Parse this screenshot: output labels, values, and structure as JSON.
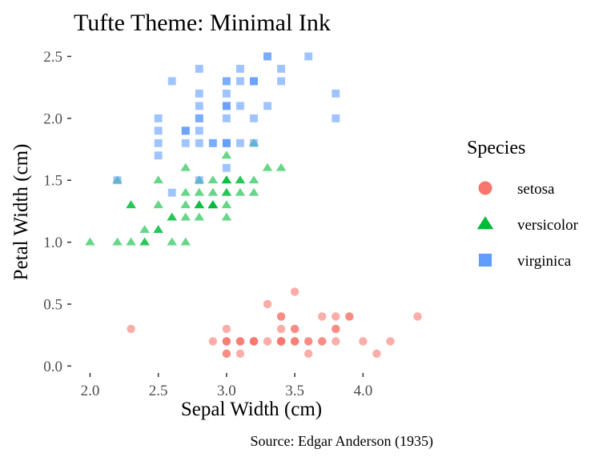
{
  "chart_data": {
    "type": "scatter",
    "title": "Tufte Theme: Minimal Ink",
    "xlabel": "Sepal Width (cm)",
    "ylabel": "Petal Width (cm)",
    "caption": "Source: Edgar Anderson (1935)",
    "xlim": [
      1.88,
      4.52
    ],
    "ylim": [
      -0.03,
      2.6
    ],
    "x_ticks": [
      {
        "value": 2.0,
        "label": "2.0"
      },
      {
        "value": 2.5,
        "label": "2.5"
      },
      {
        "value": 3.0,
        "label": "3.0"
      },
      {
        "value": 3.5,
        "label": "3.5"
      },
      {
        "value": 4.0,
        "label": "4.0"
      }
    ],
    "y_ticks": [
      {
        "value": 0.0,
        "label": "0.0"
      },
      {
        "value": 0.5,
        "label": "0.5"
      },
      {
        "value": 1.0,
        "label": "1.0"
      },
      {
        "value": 1.5,
        "label": "1.5"
      },
      {
        "value": 2.0,
        "label": "2.0"
      },
      {
        "value": 2.5,
        "label": "2.5"
      }
    ],
    "grid": false,
    "legend": {
      "title": "Species",
      "placement": "right"
    },
    "series": [
      {
        "name": "setosa",
        "shape": "circle",
        "color": "#F8766D",
        "points": [
          [
            3.5,
            0.2
          ],
          [
            3.0,
            0.2
          ],
          [
            3.2,
            0.2
          ],
          [
            3.1,
            0.2
          ],
          [
            3.6,
            0.2
          ],
          [
            3.9,
            0.4
          ],
          [
            3.4,
            0.3
          ],
          [
            3.4,
            0.2
          ],
          [
            2.9,
            0.2
          ],
          [
            3.1,
            0.1
          ],
          [
            3.7,
            0.2
          ],
          [
            3.4,
            0.2
          ],
          [
            3.0,
            0.1
          ],
          [
            3.0,
            0.1
          ],
          [
            4.0,
            0.2
          ],
          [
            4.4,
            0.4
          ],
          [
            3.9,
            0.4
          ],
          [
            3.5,
            0.3
          ],
          [
            3.8,
            0.3
          ],
          [
            3.8,
            0.3
          ],
          [
            3.4,
            0.2
          ],
          [
            3.7,
            0.4
          ],
          [
            3.6,
            0.2
          ],
          [
            3.3,
            0.5
          ],
          [
            3.4,
            0.2
          ],
          [
            3.0,
            0.2
          ],
          [
            3.4,
            0.4
          ],
          [
            3.5,
            0.2
          ],
          [
            3.4,
            0.2
          ],
          [
            3.2,
            0.2
          ],
          [
            3.1,
            0.2
          ],
          [
            3.4,
            0.4
          ],
          [
            4.1,
            0.1
          ],
          [
            4.2,
            0.2
          ],
          [
            3.1,
            0.2
          ],
          [
            3.2,
            0.2
          ],
          [
            3.5,
            0.2
          ],
          [
            3.6,
            0.1
          ],
          [
            3.0,
            0.2
          ],
          [
            3.4,
            0.2
          ],
          [
            3.5,
            0.3
          ],
          [
            2.3,
            0.3
          ],
          [
            3.2,
            0.2
          ],
          [
            3.5,
            0.6
          ],
          [
            3.8,
            0.4
          ],
          [
            3.0,
            0.3
          ],
          [
            3.8,
            0.2
          ],
          [
            3.2,
            0.2
          ],
          [
            3.7,
            0.2
          ],
          [
            3.3,
            0.2
          ]
        ]
      },
      {
        "name": "versicolor",
        "shape": "triangle",
        "color": "#00BA38",
        "points": [
          [
            3.2,
            1.4
          ],
          [
            3.2,
            1.5
          ],
          [
            3.1,
            1.5
          ],
          [
            2.3,
            1.3
          ],
          [
            2.8,
            1.5
          ],
          [
            2.8,
            1.3
          ],
          [
            3.3,
            1.6
          ],
          [
            2.4,
            1.0
          ],
          [
            2.9,
            1.3
          ],
          [
            2.7,
            1.4
          ],
          [
            2.0,
            1.0
          ],
          [
            3.0,
            1.5
          ],
          [
            2.2,
            1.0
          ],
          [
            2.9,
            1.4
          ],
          [
            2.9,
            1.3
          ],
          [
            3.1,
            1.4
          ],
          [
            3.0,
            1.5
          ],
          [
            2.7,
            1.0
          ],
          [
            2.2,
            1.5
          ],
          [
            2.5,
            1.1
          ],
          [
            3.2,
            1.8
          ],
          [
            2.8,
            1.3
          ],
          [
            2.5,
            1.5
          ],
          [
            2.8,
            1.2
          ],
          [
            2.9,
            1.3
          ],
          [
            3.0,
            1.4
          ],
          [
            2.8,
            1.4
          ],
          [
            3.0,
            1.7
          ],
          [
            2.9,
            1.5
          ],
          [
            2.6,
            1.0
          ],
          [
            2.4,
            1.1
          ],
          [
            2.4,
            1.0
          ],
          [
            2.7,
            1.2
          ],
          [
            2.7,
            1.6
          ],
          [
            3.0,
            1.5
          ],
          [
            3.4,
            1.6
          ],
          [
            3.1,
            1.5
          ],
          [
            2.3,
            1.3
          ],
          [
            3.0,
            1.3
          ],
          [
            2.5,
            1.3
          ],
          [
            2.6,
            1.2
          ],
          [
            3.0,
            1.4
          ],
          [
            2.6,
            1.2
          ],
          [
            2.3,
            1.0
          ],
          [
            2.7,
            1.3
          ],
          [
            3.0,
            1.2
          ],
          [
            2.9,
            1.3
          ],
          [
            2.9,
            1.3
          ],
          [
            2.5,
            1.1
          ],
          [
            2.8,
            1.3
          ]
        ]
      },
      {
        "name": "virginica",
        "shape": "square",
        "color": "#619CFF",
        "points": [
          [
            3.3,
            2.5
          ],
          [
            2.7,
            1.9
          ],
          [
            3.0,
            2.1
          ],
          [
            2.9,
            1.8
          ],
          [
            3.0,
            2.2
          ],
          [
            3.0,
            2.1
          ],
          [
            2.5,
            1.7
          ],
          [
            2.9,
            1.8
          ],
          [
            2.5,
            1.8
          ],
          [
            3.6,
            2.5
          ],
          [
            3.2,
            2.0
          ],
          [
            2.7,
            1.9
          ],
          [
            3.0,
            2.1
          ],
          [
            2.5,
            2.0
          ],
          [
            2.8,
            2.4
          ],
          [
            3.2,
            2.3
          ],
          [
            3.0,
            1.8
          ],
          [
            3.8,
            2.2
          ],
          [
            2.6,
            2.3
          ],
          [
            2.2,
            1.5
          ],
          [
            3.2,
            2.3
          ],
          [
            2.8,
            2.0
          ],
          [
            2.8,
            2.0
          ],
          [
            2.7,
            1.8
          ],
          [
            3.3,
            2.1
          ],
          [
            3.2,
            1.8
          ],
          [
            2.8,
            1.8
          ],
          [
            3.0,
            1.8
          ],
          [
            2.8,
            2.1
          ],
          [
            3.0,
            1.6
          ],
          [
            2.8,
            1.9
          ],
          [
            3.8,
            2.0
          ],
          [
            2.8,
            2.2
          ],
          [
            2.8,
            1.5
          ],
          [
            2.6,
            1.4
          ],
          [
            3.0,
            2.3
          ],
          [
            3.4,
            2.4
          ],
          [
            3.1,
            1.8
          ],
          [
            3.0,
            1.8
          ],
          [
            3.1,
            2.1
          ],
          [
            3.1,
            2.4
          ],
          [
            3.1,
            2.3
          ],
          [
            2.7,
            1.9
          ],
          [
            3.2,
            2.3
          ],
          [
            3.3,
            2.5
          ],
          [
            3.0,
            2.3
          ],
          [
            2.5,
            1.9
          ],
          [
            3.0,
            2.0
          ],
          [
            3.4,
            2.3
          ],
          [
            3.0,
            1.8
          ]
        ]
      }
    ]
  }
}
